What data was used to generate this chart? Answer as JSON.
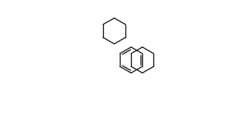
{
  "bg_color": "#ffffff",
  "line_color": "#1a1a1a",
  "lw": 0.95,
  "fs": 6.5,
  "fig_w": 3.03,
  "fig_h": 1.64,
  "dpi": 100
}
